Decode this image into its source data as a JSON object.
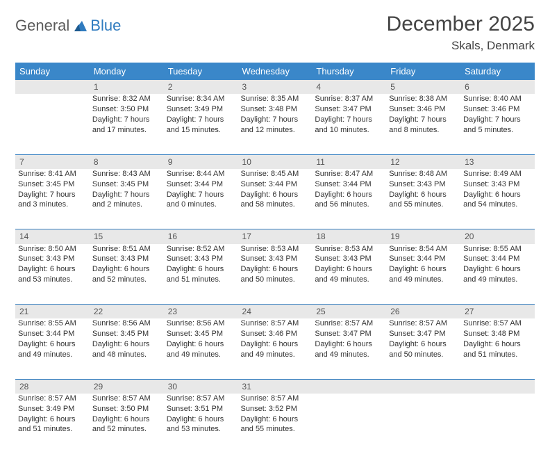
{
  "brand": {
    "general": "General",
    "blue": "Blue"
  },
  "title": "December 2025",
  "location": "Skals, Denmark",
  "colors": {
    "header_bg": "#3a87c9",
    "header_text": "#ffffff",
    "daynum_bg": "#e8e8e8",
    "divider": "#2f7bbf",
    "text": "#333333",
    "logo_gray": "#5a5a5a",
    "logo_blue": "#2f7bbf",
    "background": "#ffffff"
  },
  "typography": {
    "title_fontsize": 30,
    "location_fontsize": 17,
    "header_fontsize": 13,
    "cell_fontsize": 11,
    "logo_fontsize": 22
  },
  "days_of_week": [
    "Sunday",
    "Monday",
    "Tuesday",
    "Wednesday",
    "Thursday",
    "Friday",
    "Saturday"
  ],
  "weeks": [
    {
      "nums": [
        "",
        "1",
        "2",
        "3",
        "4",
        "5",
        "6"
      ],
      "cells": [
        [],
        [
          "Sunrise: 8:32 AM",
          "Sunset: 3:50 PM",
          "Daylight: 7 hours",
          "and 17 minutes."
        ],
        [
          "Sunrise: 8:34 AM",
          "Sunset: 3:49 PM",
          "Daylight: 7 hours",
          "and 15 minutes."
        ],
        [
          "Sunrise: 8:35 AM",
          "Sunset: 3:48 PM",
          "Daylight: 7 hours",
          "and 12 minutes."
        ],
        [
          "Sunrise: 8:37 AM",
          "Sunset: 3:47 PM",
          "Daylight: 7 hours",
          "and 10 minutes."
        ],
        [
          "Sunrise: 8:38 AM",
          "Sunset: 3:46 PM",
          "Daylight: 7 hours",
          "and 8 minutes."
        ],
        [
          "Sunrise: 8:40 AM",
          "Sunset: 3:46 PM",
          "Daylight: 7 hours",
          "and 5 minutes."
        ]
      ]
    },
    {
      "nums": [
        "7",
        "8",
        "9",
        "10",
        "11",
        "12",
        "13"
      ],
      "cells": [
        [
          "Sunrise: 8:41 AM",
          "Sunset: 3:45 PM",
          "Daylight: 7 hours",
          "and 3 minutes."
        ],
        [
          "Sunrise: 8:43 AM",
          "Sunset: 3:45 PM",
          "Daylight: 7 hours",
          "and 2 minutes."
        ],
        [
          "Sunrise: 8:44 AM",
          "Sunset: 3:44 PM",
          "Daylight: 7 hours",
          "and 0 minutes."
        ],
        [
          "Sunrise: 8:45 AM",
          "Sunset: 3:44 PM",
          "Daylight: 6 hours",
          "and 58 minutes."
        ],
        [
          "Sunrise: 8:47 AM",
          "Sunset: 3:44 PM",
          "Daylight: 6 hours",
          "and 56 minutes."
        ],
        [
          "Sunrise: 8:48 AM",
          "Sunset: 3:43 PM",
          "Daylight: 6 hours",
          "and 55 minutes."
        ],
        [
          "Sunrise: 8:49 AM",
          "Sunset: 3:43 PM",
          "Daylight: 6 hours",
          "and 54 minutes."
        ]
      ]
    },
    {
      "nums": [
        "14",
        "15",
        "16",
        "17",
        "18",
        "19",
        "20"
      ],
      "cells": [
        [
          "Sunrise: 8:50 AM",
          "Sunset: 3:43 PM",
          "Daylight: 6 hours",
          "and 53 minutes."
        ],
        [
          "Sunrise: 8:51 AM",
          "Sunset: 3:43 PM",
          "Daylight: 6 hours",
          "and 52 minutes."
        ],
        [
          "Sunrise: 8:52 AM",
          "Sunset: 3:43 PM",
          "Daylight: 6 hours",
          "and 51 minutes."
        ],
        [
          "Sunrise: 8:53 AM",
          "Sunset: 3:43 PM",
          "Daylight: 6 hours",
          "and 50 minutes."
        ],
        [
          "Sunrise: 8:53 AM",
          "Sunset: 3:43 PM",
          "Daylight: 6 hours",
          "and 49 minutes."
        ],
        [
          "Sunrise: 8:54 AM",
          "Sunset: 3:44 PM",
          "Daylight: 6 hours",
          "and 49 minutes."
        ],
        [
          "Sunrise: 8:55 AM",
          "Sunset: 3:44 PM",
          "Daylight: 6 hours",
          "and 49 minutes."
        ]
      ]
    },
    {
      "nums": [
        "21",
        "22",
        "23",
        "24",
        "25",
        "26",
        "27"
      ],
      "cells": [
        [
          "Sunrise: 8:55 AM",
          "Sunset: 3:44 PM",
          "Daylight: 6 hours",
          "and 49 minutes."
        ],
        [
          "Sunrise: 8:56 AM",
          "Sunset: 3:45 PM",
          "Daylight: 6 hours",
          "and 48 minutes."
        ],
        [
          "Sunrise: 8:56 AM",
          "Sunset: 3:45 PM",
          "Daylight: 6 hours",
          "and 49 minutes."
        ],
        [
          "Sunrise: 8:57 AM",
          "Sunset: 3:46 PM",
          "Daylight: 6 hours",
          "and 49 minutes."
        ],
        [
          "Sunrise: 8:57 AM",
          "Sunset: 3:47 PM",
          "Daylight: 6 hours",
          "and 49 minutes."
        ],
        [
          "Sunrise: 8:57 AM",
          "Sunset: 3:47 PM",
          "Daylight: 6 hours",
          "and 50 minutes."
        ],
        [
          "Sunrise: 8:57 AM",
          "Sunset: 3:48 PM",
          "Daylight: 6 hours",
          "and 51 minutes."
        ]
      ]
    },
    {
      "nums": [
        "28",
        "29",
        "30",
        "31",
        "",
        "",
        ""
      ],
      "cells": [
        [
          "Sunrise: 8:57 AM",
          "Sunset: 3:49 PM",
          "Daylight: 6 hours",
          "and 51 minutes."
        ],
        [
          "Sunrise: 8:57 AM",
          "Sunset: 3:50 PM",
          "Daylight: 6 hours",
          "and 52 minutes."
        ],
        [
          "Sunrise: 8:57 AM",
          "Sunset: 3:51 PM",
          "Daylight: 6 hours",
          "and 53 minutes."
        ],
        [
          "Sunrise: 8:57 AM",
          "Sunset: 3:52 PM",
          "Daylight: 6 hours",
          "and 55 minutes."
        ],
        [],
        [],
        []
      ]
    }
  ]
}
